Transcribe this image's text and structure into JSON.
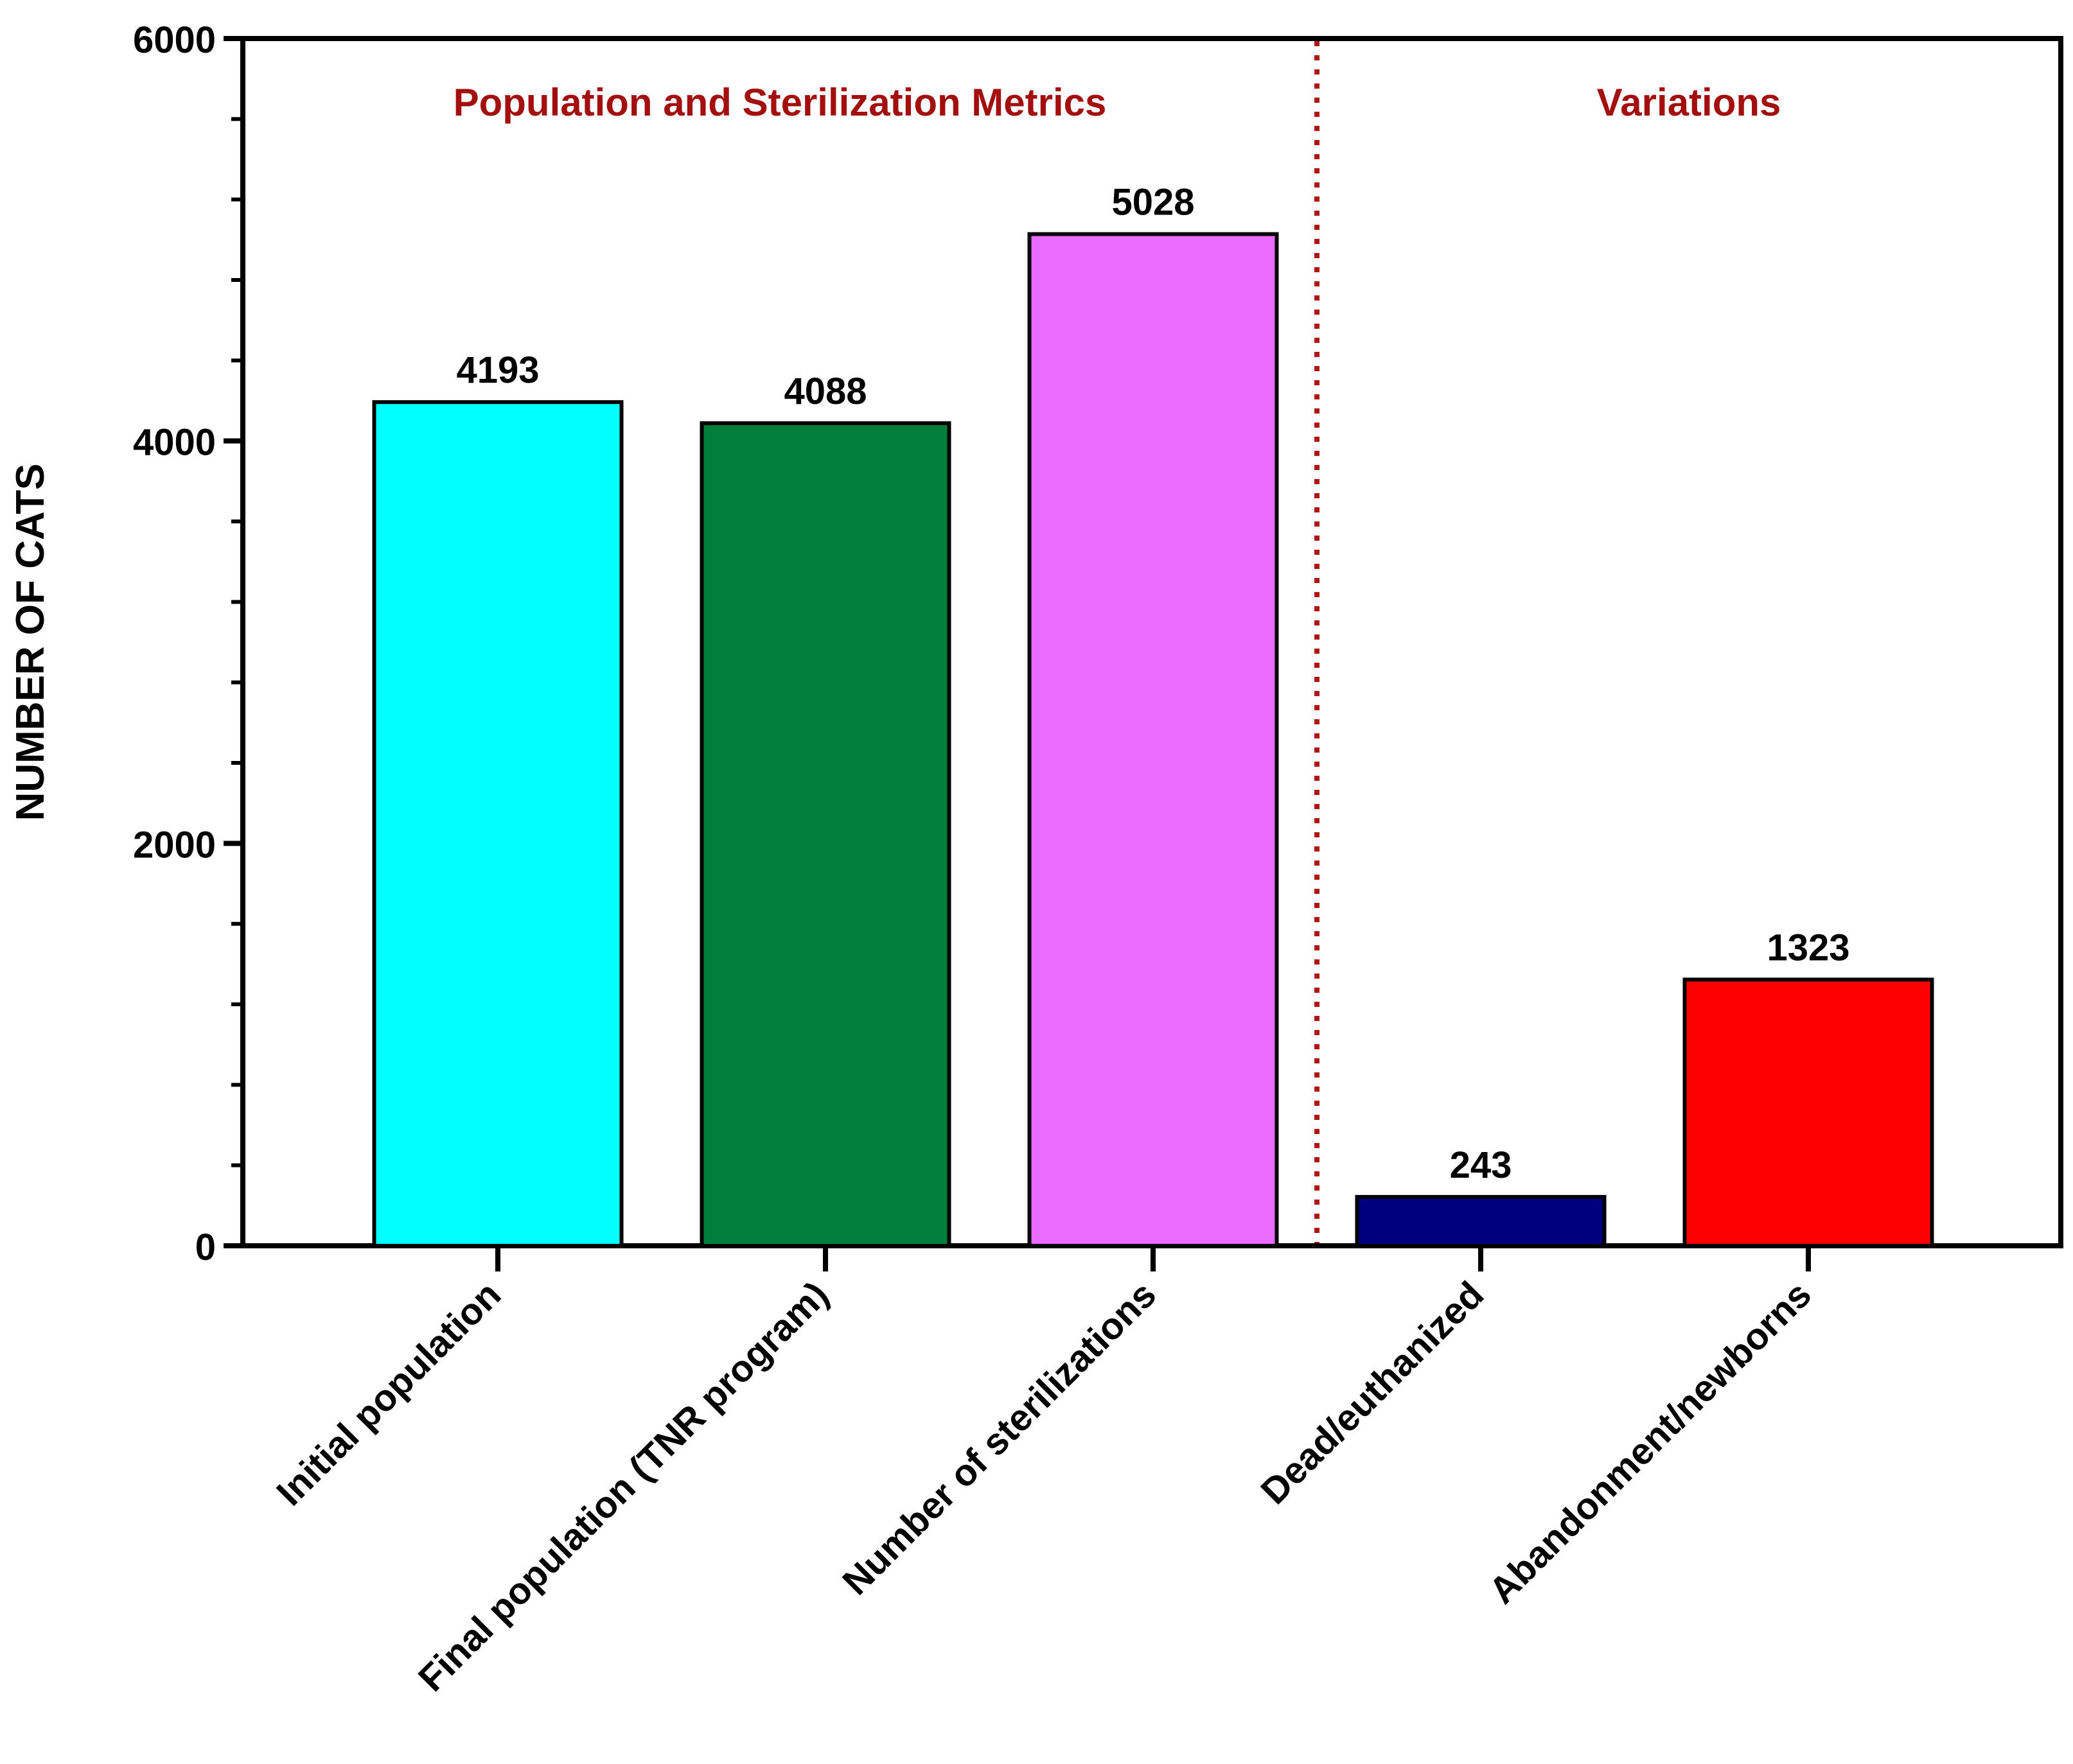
{
  "chart_data": {
    "type": "bar",
    "ylabel": "NUMBER OF CATS",
    "xlabel": "",
    "ylim": [
      0,
      6000
    ],
    "major_ticks": [
      0,
      2000,
      4000,
      6000
    ],
    "minor_step": 400,
    "categories": [
      "Initial population",
      "Final population (TNR program)",
      "Number of sterilizations",
      "Dead/euthanized",
      "Abandonment/newborns"
    ],
    "values": [
      4193,
      4088,
      5028,
      243,
      1323
    ],
    "colors": [
      "#00ffff",
      "#007f3b",
      "#e96bff",
      "#00007f",
      "#ff0000"
    ],
    "groups": [
      {
        "title": "Population and Sterilization Metrics",
        "start_index": 0,
        "end_index": 2
      },
      {
        "title": "Variations",
        "start_index": 3,
        "end_index": 4
      }
    ],
    "group_title_color": "#a30f0f",
    "divider_color": "#b01515"
  }
}
